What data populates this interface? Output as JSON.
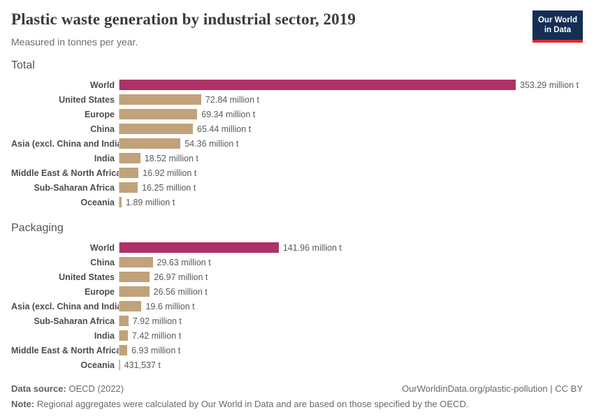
{
  "header": {
    "title": "Plastic waste generation by industrial sector, 2019",
    "subtitle": "Measured in tonnes per year.",
    "logo_line1": "Our World",
    "logo_line2": "in Data"
  },
  "colors": {
    "world_bar": "#ae3266",
    "region_bar": "#c1a27a",
    "axis_line": "#cfcfcf",
    "logo_bg": "#152e54",
    "logo_accent": "#e0262c"
  },
  "chart_data": [
    {
      "type": "bar",
      "title": "Total",
      "orientation": "horizontal",
      "unit": "tonnes per year",
      "xlim": [
        0,
        353.29
      ],
      "grid": false,
      "categories": [
        "World",
        "United States",
        "Europe",
        "China",
        "Asia (excl. China and India)",
        "India",
        "Middle East & North Africa",
        "Sub-Saharan Africa",
        "Oceania"
      ],
      "values": [
        353.29,
        72.84,
        69.34,
        65.44,
        54.36,
        18.52,
        16.92,
        16.25,
        1.89
      ],
      "value_labels": [
        "353.29 million t",
        "72.84 million t",
        "69.34 million t",
        "65.44 million t",
        "54.36 million t",
        "18.52 million t",
        "16.92 million t",
        "16.25 million t",
        "1.89 million t"
      ]
    },
    {
      "type": "bar",
      "title": "Packaging",
      "orientation": "horizontal",
      "unit": "tonnes per year",
      "xlim": [
        0,
        353.29
      ],
      "grid": false,
      "categories": [
        "World",
        "China",
        "United States",
        "Europe",
        "Asia (excl. China and India)",
        "Sub-Saharan Africa",
        "India",
        "Middle East & North Africa",
        "Oceania"
      ],
      "values": [
        141.96,
        29.63,
        26.97,
        26.56,
        19.6,
        7.92,
        7.42,
        6.93,
        0.431537
      ],
      "value_labels": [
        "141.96 million t",
        "29.63 million t",
        "26.97 million t",
        "26.56 million t",
        "19.6 million t",
        "7.92 million t",
        "7.42 million t",
        "6.93 million t",
        "431,537 t"
      ]
    }
  ],
  "footer": {
    "datasource_label": "Data source:",
    "datasource_value": " OECD (2022)",
    "link": "OurWorldinData.org/plastic-pollution | CC BY",
    "note_label": "Note:",
    "note_value": " Regional aggregates were calculated by Our World in Data and are based on those specified by the OECD."
  }
}
